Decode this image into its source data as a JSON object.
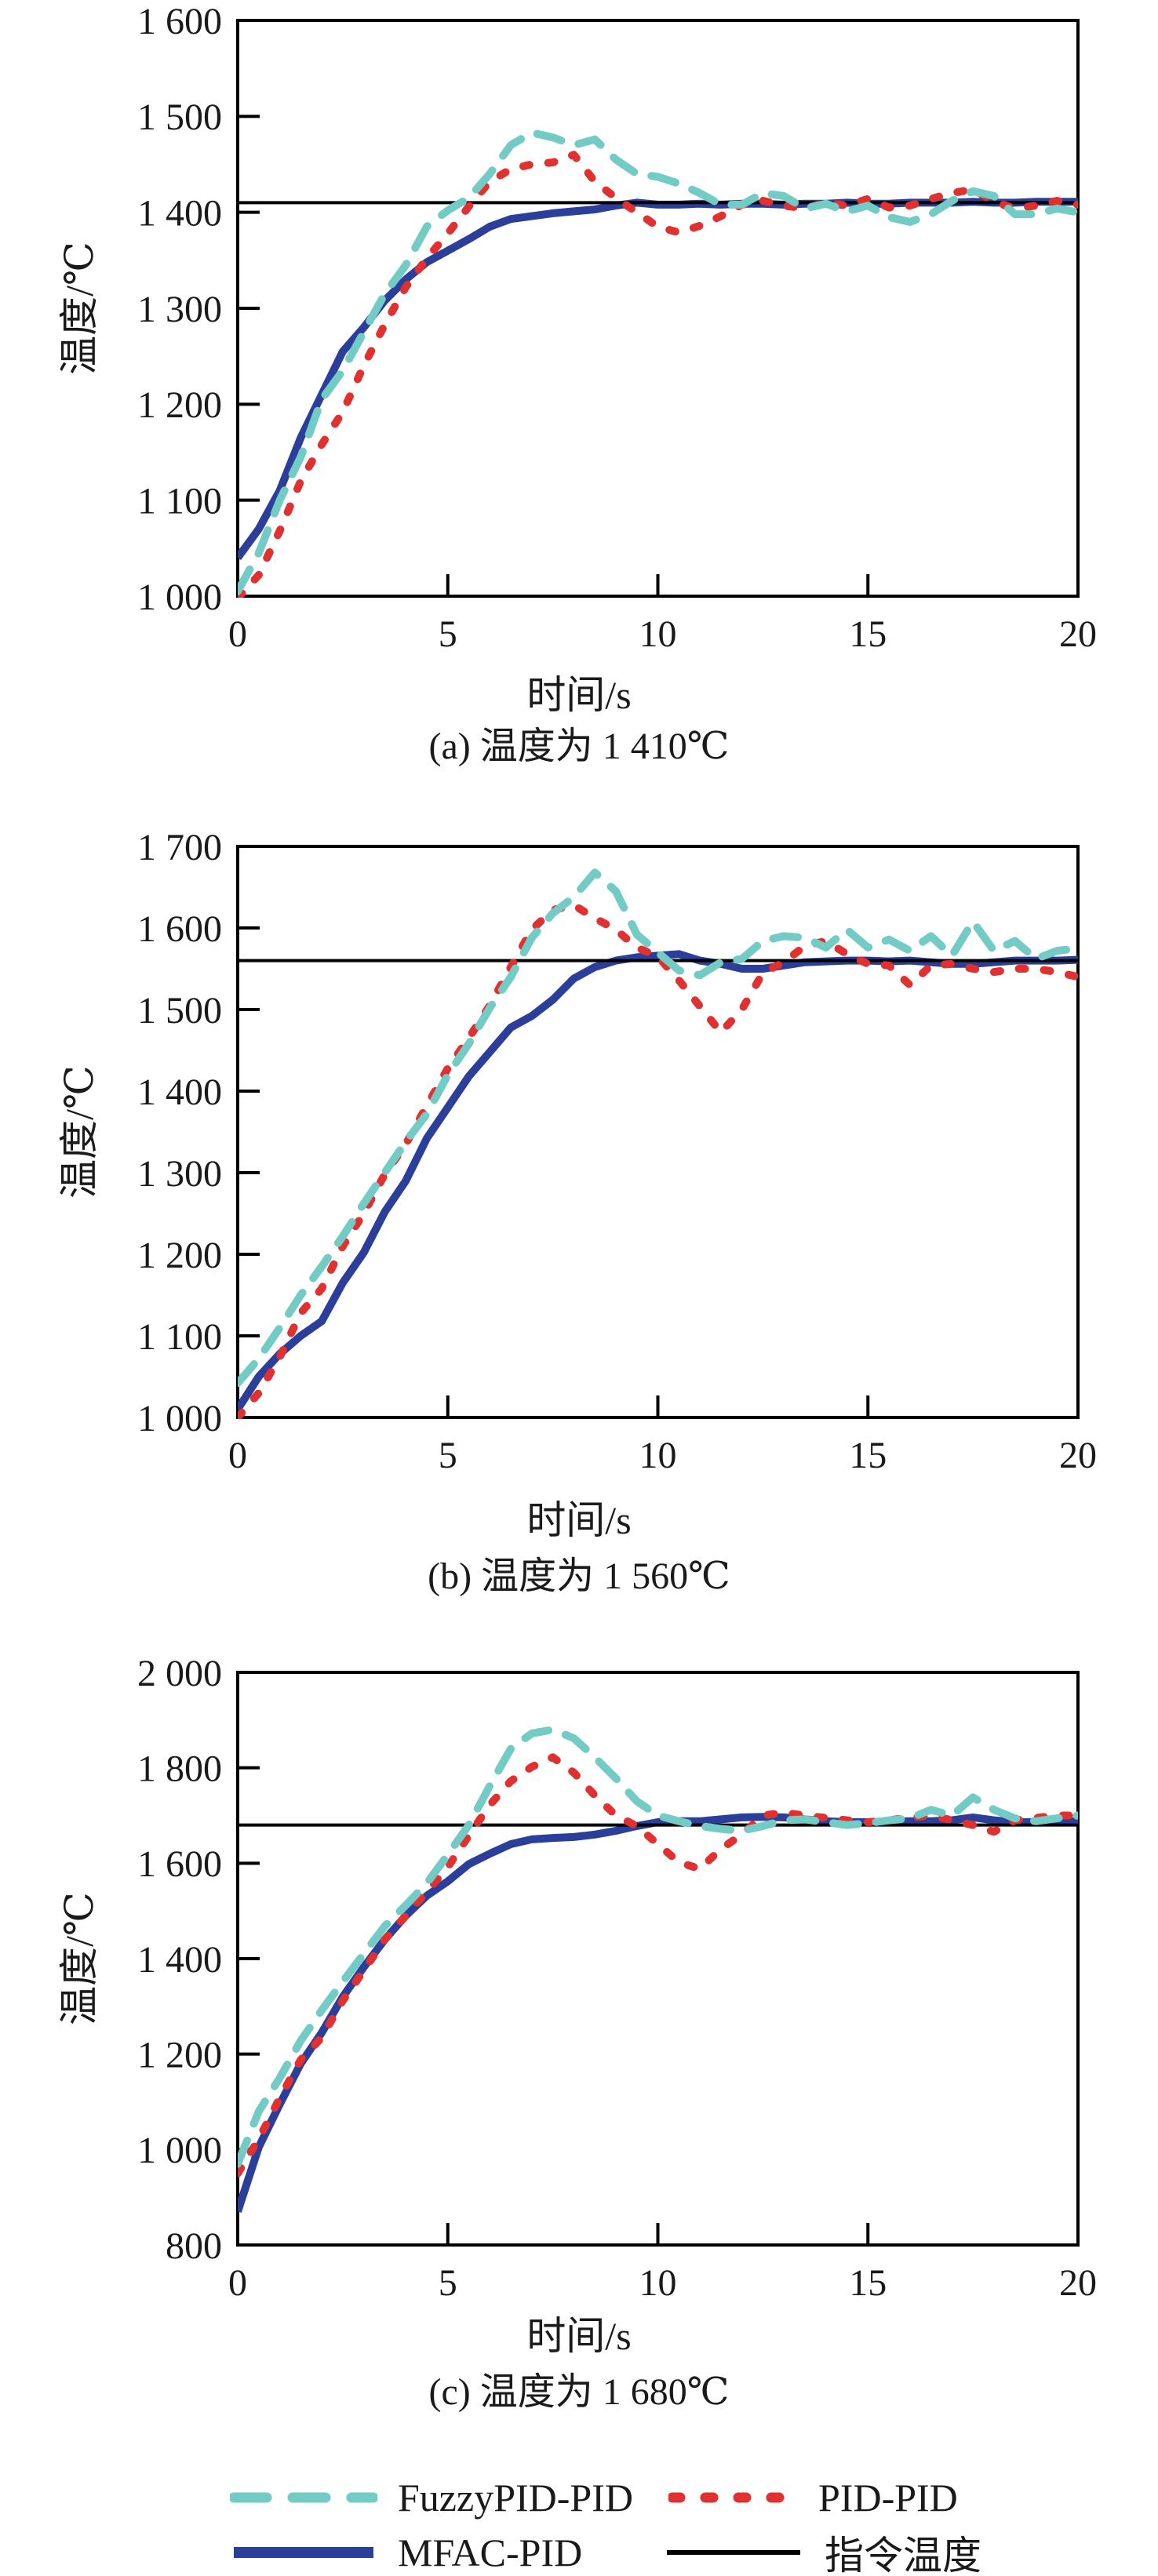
{
  "figure": {
    "xlabel": "时间/s",
    "ylabel": "温度/℃"
  },
  "legend": {
    "items": [
      {
        "label": "FuzzyPID-PID",
        "style": "dashed",
        "color": "#73CBC6"
      },
      {
        "label": "PID-PID",
        "style": "dotted",
        "color": "#E0302F"
      },
      {
        "label": "MFAC-PID",
        "style": "solid",
        "color": "#2B3F9A"
      },
      {
        "label": "指令温度",
        "style": "target",
        "color": "#000000"
      }
    ]
  },
  "chart_data": [
    {
      "type": "line",
      "panel": "a",
      "caption": "(a) 温度为 1 410℃",
      "xlabel": "时间/s",
      "ylabel": "温度/℃",
      "xlim": [
        0,
        20
      ],
      "ylim": [
        1000,
        1600
      ],
      "xticks": [
        0,
        5,
        10,
        15,
        20
      ],
      "xtick_labels": [
        "0",
        "5",
        "10",
        "15",
        "20"
      ],
      "yticks": [
        1000,
        1100,
        1200,
        1300,
        1400,
        1500,
        1600
      ],
      "ytick_labels": [
        "1 000",
        "1 100",
        "1 200",
        "1 300",
        "1 400",
        "1 500",
        "1 600"
      ],
      "grid": false,
      "target_temperature": 1410,
      "x_start": 0,
      "x_step": 0.5,
      "series": [
        {
          "name": "FuzzyPID-PID",
          "style": "dashed",
          "color": "#73CBC6",
          "values": [
            1005,
            1045,
            1100,
            1145,
            1205,
            1235,
            1275,
            1315,
            1345,
            1385,
            1402,
            1415,
            1440,
            1470,
            1483,
            1478,
            1470,
            1476,
            1455,
            1440,
            1437,
            1430,
            1420,
            1408,
            1408,
            1420,
            1417,
            1404,
            1409,
            1401,
            1407,
            1395,
            1390,
            1398,
            1412,
            1422,
            1417,
            1398,
            1398,
            1404,
            1400
          ]
        },
        {
          "name": "PID-PID",
          "style": "dotted",
          "color": "#E0302F",
          "values": [
            998,
            1022,
            1068,
            1120,
            1158,
            1192,
            1240,
            1283,
            1322,
            1352,
            1378,
            1406,
            1432,
            1445,
            1450,
            1452,
            1460,
            1432,
            1415,
            1400,
            1385,
            1379,
            1386,
            1396,
            1408,
            1412,
            1407,
            1404,
            1410,
            1407,
            1414,
            1405,
            1407,
            1414,
            1420,
            1424,
            1411,
            1404,
            1407,
            1412,
            1408
          ]
        },
        {
          "name": "MFAC-PID",
          "style": "solid",
          "color": "#2B3F9A",
          "values": [
            1040,
            1070,
            1110,
            1165,
            1210,
            1255,
            1280,
            1308,
            1330,
            1348,
            1360,
            1372,
            1385,
            1393,
            1396,
            1399,
            1401,
            1403,
            1407,
            1410,
            1408,
            1408,
            1409,
            1408,
            1409,
            1409,
            1408,
            1409,
            1409,
            1410,
            1409,
            1409,
            1410,
            1410,
            1410,
            1411,
            1410,
            1410,
            1411,
            1411,
            1411
          ]
        },
        {
          "name": "指令温度",
          "style": "target",
          "color": "#000000",
          "value": 1410
        }
      ]
    },
    {
      "type": "line",
      "panel": "b",
      "caption": "(b) 温度为 1 560℃",
      "xlabel": "时间/s",
      "ylabel": "温度/℃",
      "xlim": [
        0,
        20
      ],
      "ylim": [
        1000,
        1700
      ],
      "xticks": [
        0,
        5,
        10,
        15,
        20
      ],
      "xtick_labels": [
        "0",
        "5",
        "10",
        "15",
        "20"
      ],
      "yticks": [
        1000,
        1100,
        1200,
        1300,
        1400,
        1500,
        1600,
        1700
      ],
      "ytick_labels": [
        "1 000",
        "1 100",
        "1 200",
        "1 300",
        "1 400",
        "1 500",
        "1 600",
        "1 700"
      ],
      "grid": false,
      "target_temperature": 1560,
      "x_start": 0,
      "x_step": 0.5,
      "series": [
        {
          "name": "FuzzyPID-PID",
          "style": "dashed",
          "color": "#73CBC6",
          "values": [
            1042,
            1072,
            1110,
            1150,
            1185,
            1222,
            1262,
            1300,
            1338,
            1372,
            1420,
            1458,
            1502,
            1540,
            1588,
            1618,
            1638,
            1668,
            1645,
            1592,
            1570,
            1548,
            1542,
            1558,
            1562,
            1584,
            1590,
            1588,
            1576,
            1598,
            1576,
            1586,
            1572,
            1590,
            1566,
            1608,
            1572,
            1584,
            1562,
            1572,
            1575
          ]
        },
        {
          "name": "PID-PID",
          "style": "dotted",
          "color": "#E0302F",
          "values": [
            1000,
            1030,
            1074,
            1128,
            1158,
            1210,
            1250,
            1298,
            1335,
            1382,
            1428,
            1465,
            1505,
            1552,
            1598,
            1622,
            1628,
            1612,
            1598,
            1576,
            1565,
            1536,
            1504,
            1472,
            1500,
            1545,
            1558,
            1578,
            1584,
            1568,
            1556,
            1554,
            1530,
            1554,
            1556,
            1550,
            1546,
            1550,
            1550,
            1546,
            1540
          ]
        },
        {
          "name": "MFAC-PID",
          "style": "solid",
          "color": "#2B3F9A",
          "values": [
            1010,
            1050,
            1078,
            1100,
            1118,
            1165,
            1202,
            1252,
            1290,
            1342,
            1380,
            1418,
            1448,
            1478,
            1492,
            1512,
            1538,
            1552,
            1560,
            1564,
            1566,
            1568,
            1560,
            1556,
            1550,
            1550,
            1554,
            1558,
            1559,
            1560,
            1560,
            1559,
            1560,
            1558,
            1556,
            1556,
            1558,
            1560,
            1560,
            1560,
            1561
          ]
        },
        {
          "name": "指令温度",
          "style": "target",
          "color": "#000000",
          "value": 1560
        }
      ]
    },
    {
      "type": "line",
      "panel": "c",
      "caption": "(c) 温度为 1 680℃",
      "xlabel": "时间/s",
      "ylabel": "温度/℃",
      "xlim": [
        0,
        20
      ],
      "ylim": [
        800,
        2000
      ],
      "xticks": [
        0,
        5,
        10,
        15,
        20
      ],
      "xtick_labels": [
        "0",
        "5",
        "10",
        "15",
        "20"
      ],
      "yticks": [
        800,
        1000,
        1200,
        1400,
        1600,
        1800,
        2000
      ],
      "ytick_labels": [
        "800",
        "1 000",
        "1 200",
        "1 400",
        "1 600",
        "1 800",
        "2 000"
      ],
      "grid": false,
      "target_temperature": 1680,
      "x_start": 0,
      "x_step": 0.5,
      "series": [
        {
          "name": "FuzzyPID-PID",
          "style": "dashed",
          "color": "#73CBC6",
          "values": [
            970,
            1080,
            1150,
            1228,
            1292,
            1352,
            1410,
            1468,
            1512,
            1558,
            1618,
            1680,
            1762,
            1840,
            1872,
            1880,
            1862,
            1822,
            1778,
            1730,
            1700,
            1688,
            1678,
            1672,
            1668,
            1678,
            1690,
            1692,
            1686,
            1680,
            1684,
            1690,
            1694,
            1712,
            1700,
            1738,
            1712,
            1694,
            1688,
            1694,
            1700
          ]
        },
        {
          "name": "PID-PID",
          "style": "dotted",
          "color": "#E0302F",
          "values": [
            950,
            1022,
            1108,
            1188,
            1235,
            1312,
            1375,
            1440,
            1490,
            1540,
            1592,
            1658,
            1722,
            1772,
            1802,
            1822,
            1790,
            1742,
            1700,
            1678,
            1640,
            1602,
            1588,
            1630,
            1660,
            1700,
            1706,
            1700,
            1695,
            1690,
            1686,
            1690,
            1696,
            1700,
            1690,
            1680,
            1666,
            1690,
            1695,
            1700,
            1700
          ]
        },
        {
          "name": "MFAC-PID",
          "style": "solid",
          "color": "#2B3F9A",
          "values": [
            870,
            1005,
            1095,
            1180,
            1245,
            1320,
            1382,
            1440,
            1490,
            1532,
            1562,
            1598,
            1620,
            1640,
            1650,
            1653,
            1655,
            1660,
            1668,
            1678,
            1686,
            1688,
            1688,
            1692,
            1696,
            1697,
            1696,
            1692,
            1688,
            1686,
            1686,
            1687,
            1688,
            1688,
            1690,
            1696,
            1690,
            1686,
            1686,
            1688,
            1688
          ]
        },
        {
          "name": "指令温度",
          "style": "target",
          "color": "#000000",
          "value": 1680
        }
      ]
    }
  ]
}
